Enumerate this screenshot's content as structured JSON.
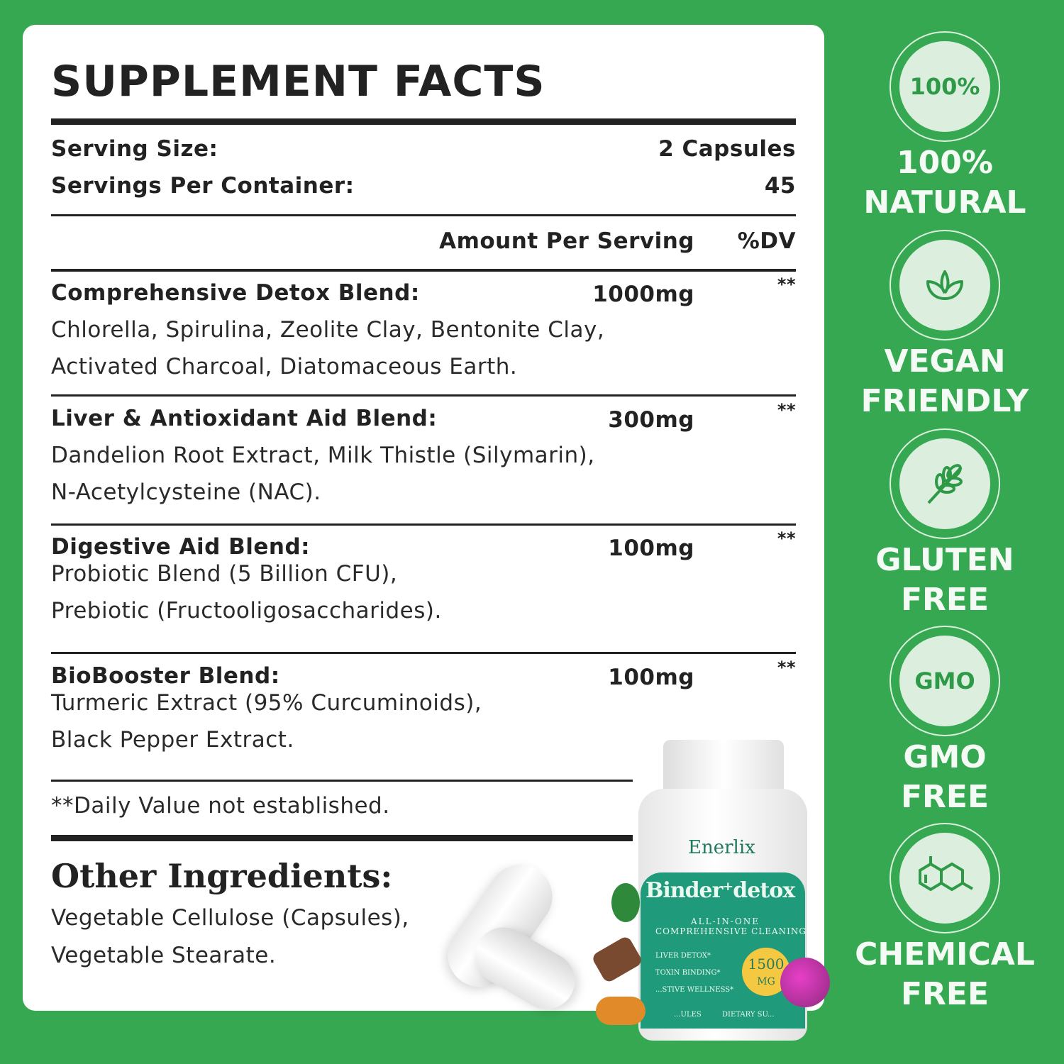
{
  "title": "SUPPLEMENT FACTS",
  "serving_size_label": "Serving Size:",
  "serving_size_value": "2 Capsules",
  "servings_label": "Servings Per Container:",
  "servings_value": "45",
  "amount_header": "Amount Per Serving",
  "dv_header": "%DV",
  "blends": [
    {
      "name": "Comprehensive Detox Blend:",
      "amount": "1000mg",
      "dv": "**",
      "lines": [
        "Chlorella, Spirulina, Zeolite Clay, Bentonite Clay,",
        "Activated Charcoal, Diatomaceous Earth."
      ]
    },
    {
      "name": "Liver & Antioxidant Aid Blend:",
      "amount": "300mg",
      "dv": "**",
      "lines": [
        "Dandelion Root Extract, Milk Thistle (Silymarin),",
        "N-Acetylcysteine (NAC)."
      ]
    },
    {
      "name": "Digestive Aid Blend:",
      "amount": "100mg",
      "dv": "**",
      "lines": [
        "Probiotic Blend (5 Billion CFU),",
        "Prebiotic (Fructooligosaccharides)."
      ]
    },
    {
      "name": "BioBooster Blend:",
      "amount": "100mg",
      "dv": "**",
      "lines": [
        "Turmeric Extract (95% Curcuminoids),",
        "Black Pepper Extract."
      ]
    }
  ],
  "footnote": "**Daily Value not established.",
  "other_title": "Other Ingredients:",
  "other_lines": [
    "Vegetable Cellulose (Capsules),",
    "Vegetable Stearate."
  ],
  "bottle": {
    "brand": "Enerlix",
    "name": "Binder⁺detox",
    "tagline1": "ALL-IN-ONE",
    "tagline2": "COMPREHENSIVE CLEANING",
    "benefits": [
      "LIVER DETOX*",
      "TOXIN BINDING*",
      "...STIVE WELLNESS*"
    ],
    "dose": "1500",
    "dose_unit": "MG",
    "bottom_left": "...ULES",
    "bottom_right": "DIETARY SU..."
  },
  "badges": [
    {
      "icon": "100%",
      "label1": "100%",
      "label2": "NATURAL"
    },
    {
      "icon": "leaf-icon",
      "label1": "VEGAN",
      "label2": "FRIENDLY"
    },
    {
      "icon": "wheat-icon",
      "label1": "GLUTEN",
      "label2": "FREE"
    },
    {
      "icon": "GMO",
      "label1": "GMO",
      "label2": "FREE"
    },
    {
      "icon": "molecule-icon",
      "label1": "CHEMICAL",
      "label2": "FREE"
    }
  ],
  "colors": {
    "background": "#36a852",
    "badge_fill": "#dcefdf",
    "bottle_label": "#1f9a7a"
  }
}
